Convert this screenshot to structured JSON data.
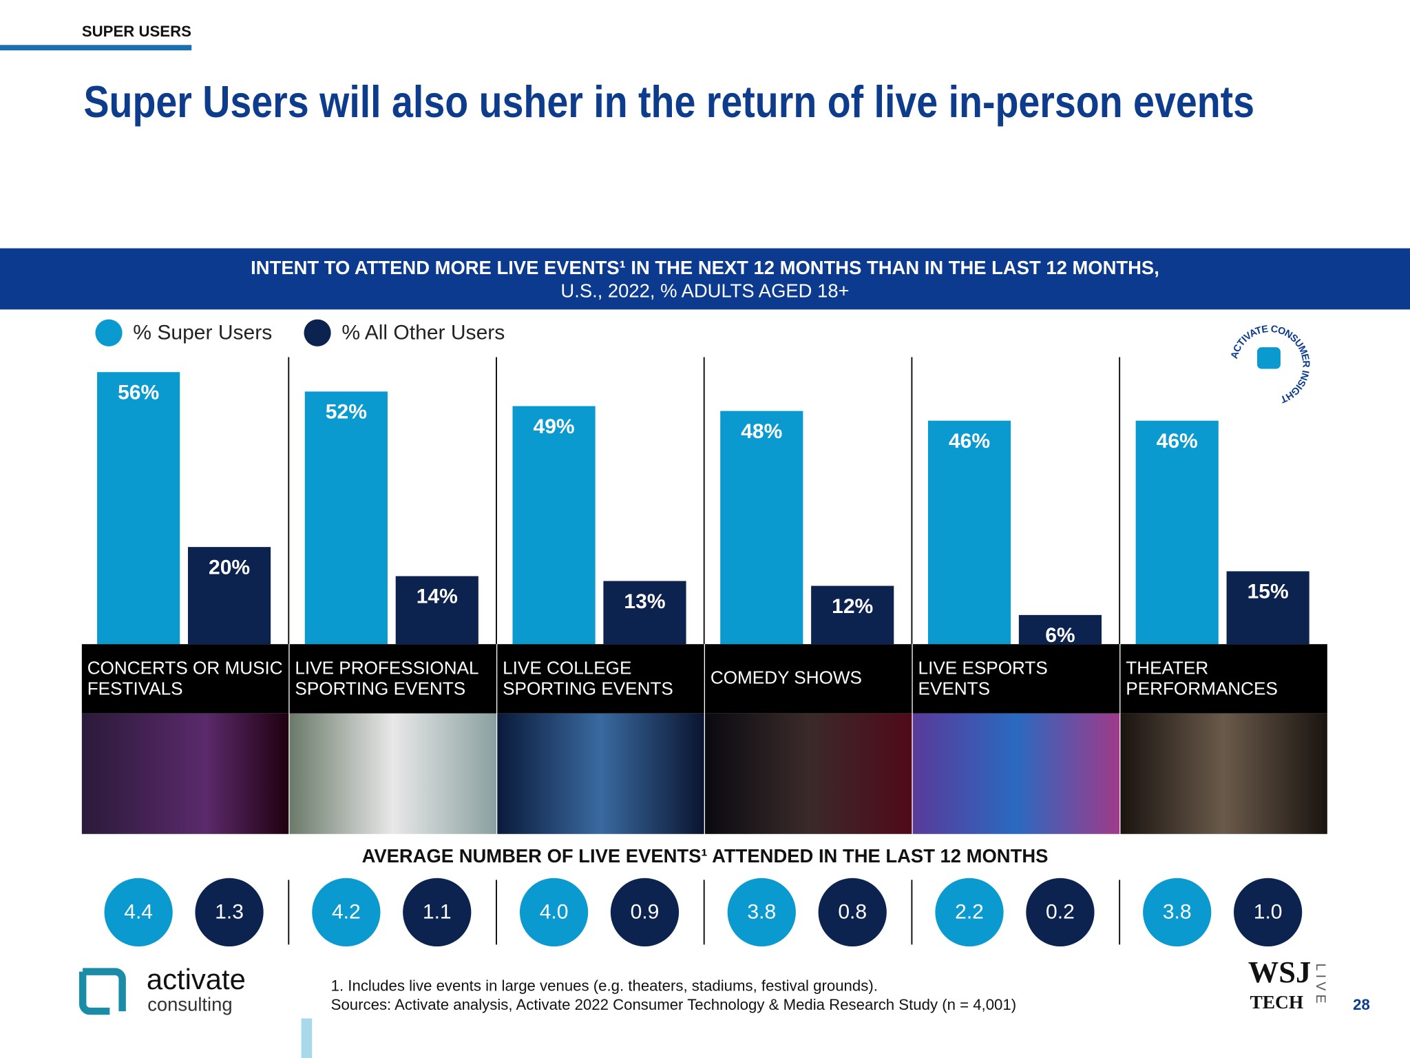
{
  "header": {
    "section": "SUPER USERS",
    "title": "Super Users will also usher in the return of live in-person events"
  },
  "chart_data": {
    "type": "bar",
    "title": "INTENT TO ATTEND MORE LIVE EVENTS¹ IN THE NEXT 12 MONTHS THAN IN THE LAST 12 MONTHS,",
    "subtitle": "U.S., 2022, % ADULTS AGED 18+",
    "categories": [
      "CONCERTS OR MUSIC FESTIVALS",
      "LIVE PROFESSIONAL SPORTING EVENTS",
      "LIVE COLLEGE SPORTING EVENTS",
      "COMEDY SHOWS",
      "LIVE ESPORTS EVENTS",
      "THEATER PERFORMANCES"
    ],
    "series": [
      {
        "name": "% Super Users",
        "color": "#0a9ad0",
        "values": [
          56,
          52,
          49,
          48,
          46,
          46
        ],
        "value_labels": [
          "56%",
          "52%",
          "49%",
          "48%",
          "46%",
          "46%"
        ]
      },
      {
        "name": "% All Other Users",
        "color": "#0c2350",
        "values": [
          20,
          14,
          13,
          12,
          6,
          15
        ],
        "value_labels": [
          "20%",
          "14%",
          "13%",
          "12%",
          "6%",
          "15%"
        ]
      }
    ],
    "legend": "top-left"
  },
  "averages": {
    "title": "AVERAGE NUMBER OF LIVE EVENTS¹ ATTENDED IN THE LAST 12 MONTHS",
    "series": [
      {
        "color": "#0a9ad0",
        "values": [
          4.4,
          4.2,
          4.0,
          3.8,
          2.2,
          3.8
        ],
        "value_labels": [
          "4.4",
          "4.2",
          "4.0",
          "3.8",
          "2.2",
          "3.8"
        ]
      },
      {
        "color": "#0c2350",
        "values": [
          1.3,
          1.1,
          0.9,
          0.8,
          0.2,
          1.0
        ],
        "value_labels": [
          "1.3",
          "1.1",
          "0.9",
          "0.8",
          "0.2",
          "1.0"
        ]
      }
    ]
  },
  "footer": {
    "notes": [
      "1. Includes live events in large venues (e.g. theaters, stadiums, festival grounds).",
      "Sources: Activate analysis, Activate 2022 Consumer Technology & Media Research Study (n = 4,001)"
    ],
    "logo": [
      "activate",
      "consulting"
    ],
    "badge": "ACTIVATE CONSUMER INSIGHT",
    "wsj": [
      "WSJ",
      "TECH",
      "LIVE"
    ],
    "page": "28"
  }
}
